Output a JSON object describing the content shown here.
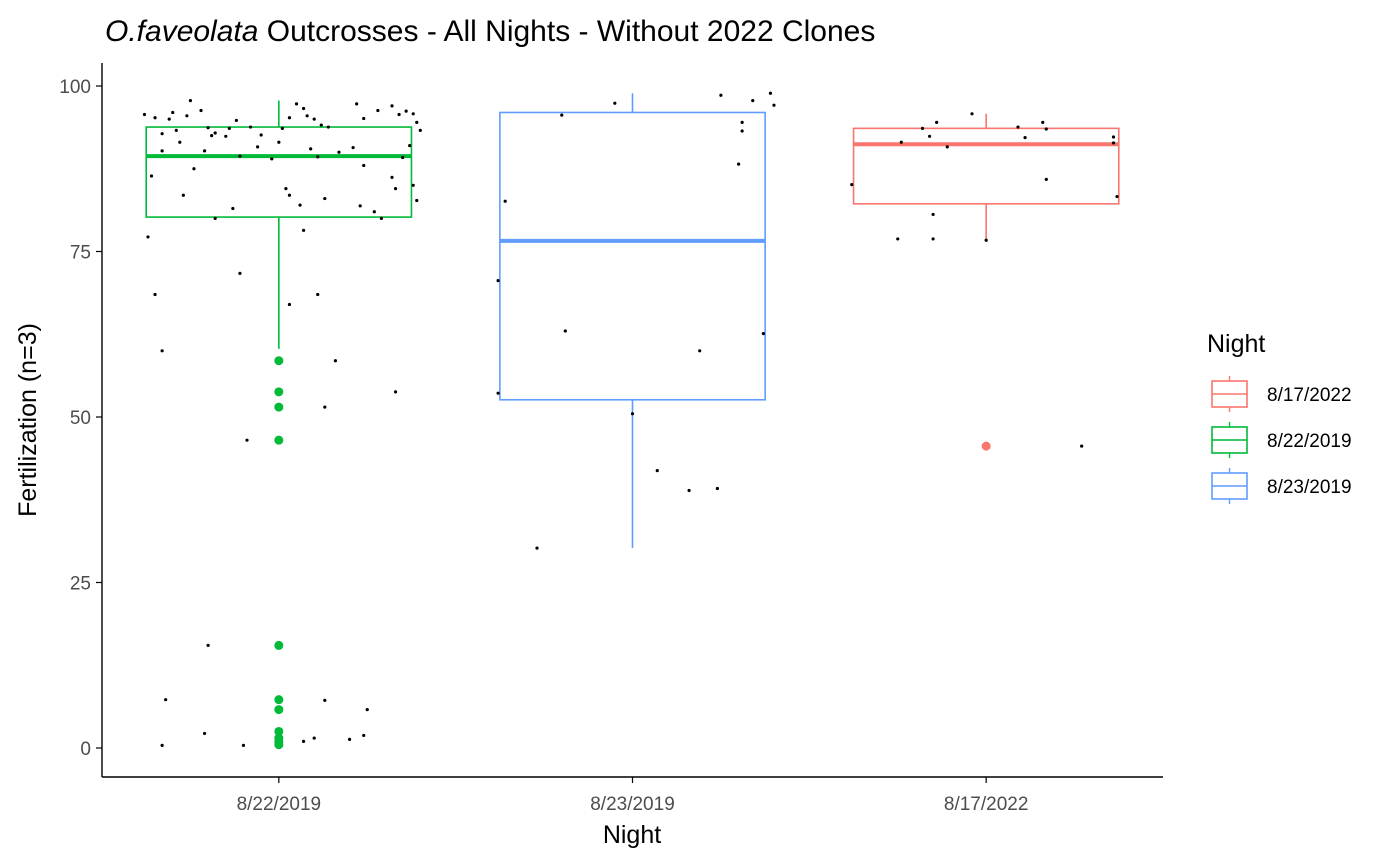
{
  "chart_data": {
    "type": "box",
    "title_italic": "O.faveolata",
    "title_rest": " Outcrosses - All Nights - Without 2022 Clones",
    "xlabel": "Night",
    "ylabel": "Fertilization (n=3)",
    "ylim": [
      -4,
      104
    ],
    "yticks": [
      0,
      25,
      50,
      75,
      100
    ],
    "categories": [
      "8/22/2019",
      "8/23/2019",
      "8/17/2022"
    ],
    "grid": false,
    "legend": {
      "title": "Night",
      "placement": "right",
      "entries": [
        {
          "label": "8/17/2022",
          "color": "#F8766D"
        },
        {
          "label": "8/22/2019",
          "color": "#00BA38"
        },
        {
          "label": "8/23/2019",
          "color": "#619CFF"
        }
      ]
    },
    "series": [
      {
        "category": "8/22/2019",
        "color": "#00BA38",
        "q1": 80.2,
        "median": 89.4,
        "q3": 93.8,
        "whisker_low": 60.3,
        "whisker_high": 97.8,
        "outliers": [
          58.5,
          53.8,
          51.5,
          46.5,
          15.5,
          7.3,
          5.8,
          2.5,
          1.5,
          1.0,
          0.5
        ],
        "points": [
          [
            -0.38,
            95.7
          ],
          [
            -0.35,
            95.2
          ],
          [
            -0.31,
            95.0
          ],
          [
            -0.33,
            92.8
          ],
          [
            -0.29,
            93.3
          ],
          [
            -0.3,
            96.0
          ],
          [
            -0.26,
            95.5
          ],
          [
            -0.25,
            97.8
          ],
          [
            -0.2,
            93.7
          ],
          [
            -0.18,
            92.9
          ],
          [
            -0.22,
            96.3
          ],
          [
            -0.14,
            93.6
          ],
          [
            -0.12,
            94.8
          ],
          [
            -0.08,
            93.8
          ],
          [
            -0.05,
            92.6
          ],
          [
            0.01,
            93.6
          ],
          [
            0.03,
            95.2
          ],
          [
            0.05,
            97.3
          ],
          [
            0.07,
            96.6
          ],
          [
            0.08,
            95.5
          ],
          [
            0.1,
            95.0
          ],
          [
            0.12,
            94.1
          ],
          [
            0.14,
            93.8
          ],
          [
            0.22,
            97.3
          ],
          [
            0.24,
            95.1
          ],
          [
            0.28,
            96.3
          ],
          [
            0.32,
            97.0
          ],
          [
            0.34,
            95.7
          ],
          [
            0.36,
            96.2
          ],
          [
            0.38,
            95.8
          ],
          [
            0.39,
            94.5
          ],
          [
            0.4,
            93.3
          ],
          [
            -0.36,
            86.4
          ],
          [
            -0.33,
            90.2
          ],
          [
            -0.28,
            91.5
          ],
          [
            -0.27,
            83.5
          ],
          [
            -0.24,
            87.5
          ],
          [
            -0.21,
            90.2
          ],
          [
            -0.19,
            92.5
          ],
          [
            -0.15,
            92.4
          ],
          [
            -0.11,
            89.4
          ],
          [
            -0.06,
            90.8
          ],
          [
            -0.02,
            89.0
          ],
          [
            0.0,
            91.5
          ],
          [
            0.02,
            84.5
          ],
          [
            0.03,
            83.5
          ],
          [
            0.06,
            82.0
          ],
          [
            0.09,
            90.5
          ],
          [
            0.11,
            89.3
          ],
          [
            0.13,
            83.0
          ],
          [
            0.17,
            90.0
          ],
          [
            0.21,
            90.7
          ],
          [
            0.23,
            81.9
          ],
          [
            0.24,
            88.0
          ],
          [
            0.27,
            81.0
          ],
          [
            0.29,
            80.0
          ],
          [
            0.32,
            86.2
          ],
          [
            0.33,
            84.5
          ],
          [
            0.35,
            89.2
          ],
          [
            0.37,
            91.0
          ],
          [
            0.38,
            85.0
          ],
          [
            0.39,
            82.7
          ],
          [
            -0.37,
            77.2
          ],
          [
            -0.18,
            80.0
          ],
          [
            -0.13,
            81.5
          ],
          [
            0.07,
            78.2
          ],
          [
            -0.11,
            71.7
          ],
          [
            -0.35,
            68.5
          ],
          [
            0.11,
            68.5
          ],
          [
            0.03,
            67.0
          ],
          [
            -0.33,
            60.0
          ],
          [
            0.16,
            58.5
          ],
          [
            0.33,
            53.8
          ],
          [
            0.13,
            51.5
          ],
          [
            -0.09,
            46.5
          ],
          [
            -0.2,
            15.5
          ],
          [
            -0.32,
            7.3
          ],
          [
            0.13,
            7.2
          ],
          [
            0.25,
            5.8
          ],
          [
            -0.21,
            2.2
          ],
          [
            0.24,
            1.9
          ],
          [
            0.1,
            1.5
          ],
          [
            0.2,
            1.3
          ],
          [
            0.07,
            1.0
          ],
          [
            -0.33,
            0.4
          ],
          [
            -0.1,
            0.4
          ]
        ]
      },
      {
        "category": "8/23/2019",
        "color": "#619CFF",
        "q1": 52.6,
        "median": 76.6,
        "q3": 96.0,
        "whisker_low": 30.2,
        "whisker_high": 98.9,
        "outliers": [],
        "points": [
          [
            0.25,
            98.6
          ],
          [
            0.39,
            98.9
          ],
          [
            0.34,
            97.8
          ],
          [
            0.4,
            97.1
          ],
          [
            -0.05,
            97.4
          ],
          [
            -0.2,
            95.6
          ],
          [
            0.31,
            94.5
          ],
          [
            0.31,
            93.2
          ],
          [
            0.3,
            88.2
          ],
          [
            -0.36,
            82.6
          ],
          [
            -0.38,
            70.6
          ],
          [
            -0.19,
            63.0
          ],
          [
            0.37,
            62.6
          ],
          [
            0.19,
            60.0
          ],
          [
            -0.38,
            53.6
          ],
          [
            0.0,
            50.5
          ],
          [
            0.07,
            41.9
          ],
          [
            0.16,
            38.9
          ],
          [
            0.24,
            39.2
          ],
          [
            -0.27,
            30.2
          ]
        ]
      },
      {
        "category": "8/17/2022",
        "color": "#F8766D",
        "q1": 82.2,
        "median": 91.2,
        "q3": 93.6,
        "whisker_low": 76.7,
        "whisker_high": 95.8,
        "outliers": [
          45.6
        ],
        "points": [
          [
            -0.38,
            85.1
          ],
          [
            -0.24,
            91.5
          ],
          [
            -0.18,
            93.6
          ],
          [
            -0.16,
            92.4
          ],
          [
            -0.14,
            94.5
          ],
          [
            -0.11,
            90.8
          ],
          [
            -0.04,
            95.8
          ],
          [
            0.09,
            93.8
          ],
          [
            0.11,
            92.2
          ],
          [
            0.17,
            93.5
          ],
          [
            0.16,
            94.5
          ],
          [
            0.17,
            85.9
          ],
          [
            0.36,
            92.3
          ],
          [
            0.36,
            91.4
          ],
          [
            0.37,
            83.3
          ],
          [
            -0.15,
            80.6
          ],
          [
            -0.25,
            76.9
          ],
          [
            -0.15,
            76.9
          ],
          [
            0.0,
            76.7
          ],
          [
            0.27,
            45.6
          ]
        ]
      }
    ]
  }
}
